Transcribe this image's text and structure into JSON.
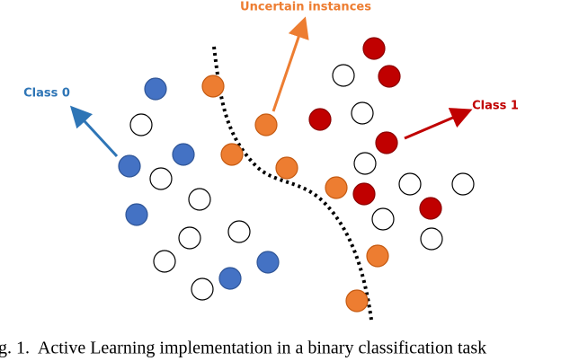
{
  "labels": {
    "uncertain": "Uncertain instances",
    "class0": "Class 0",
    "class1": "Class 1"
  },
  "caption": "g. 1.  Active Learning implementation in a binary classification task"
}
